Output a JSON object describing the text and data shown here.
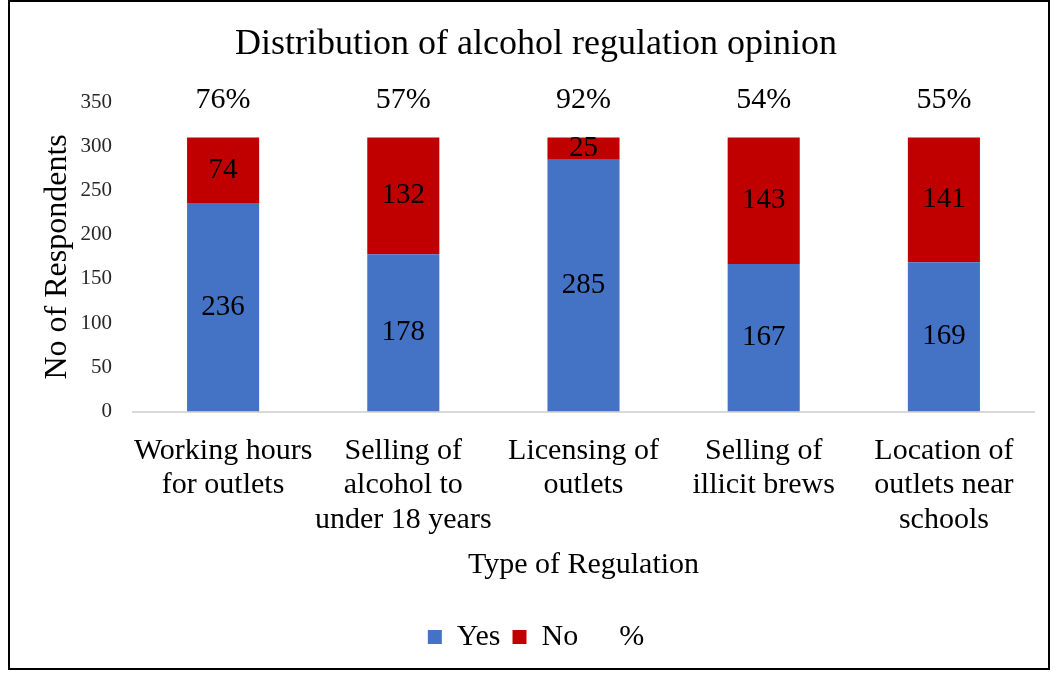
{
  "chart_data": {
    "type": "bar",
    "title": "Distribution of alcohol regulation opinion",
    "xlabel": "Type of Regulation",
    "ylabel": "No of Respondents",
    "categories": [
      "Working hours for outlets",
      "Selling of alcohol to under 18 years",
      "Licensing of outlets",
      "Selling of illicit brews",
      "Location of outlets near schools"
    ],
    "series": [
      {
        "name": "Yes",
        "color": "#4472c4",
        "values": [
          236,
          178,
          285,
          167,
          169
        ]
      },
      {
        "name": "No",
        "color": "#c00000",
        "values": [
          74,
          132,
          25,
          143,
          141
        ]
      }
    ],
    "stacked": true,
    "ylim": [
      0,
      350
    ],
    "yticks": [
      0,
      50,
      100,
      150,
      200,
      250,
      300,
      350
    ],
    "grid": false,
    "legend": "bottom",
    "data_labels": true,
    "annotations": [
      {
        "text": "76%",
        "x": "Working hours for outlets",
        "y": 310
      },
      {
        "text": "57%",
        "x": "Selling of alcohol to under 18 years",
        "y": 310
      },
      {
        "text": "92%",
        "x": "Licensing of outlets",
        "y": 310
      },
      {
        "text": "54%",
        "x": "Selling of illicit brews",
        "y": 310
      },
      {
        "text": "55%",
        "x": "Location of outlets near schools",
        "y": 310
      },
      "%"
    ]
  }
}
